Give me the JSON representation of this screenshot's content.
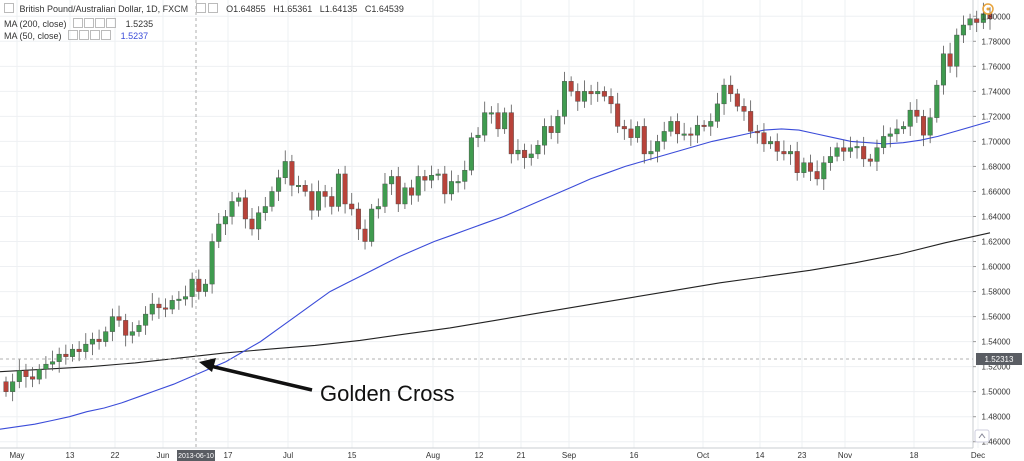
{
  "header": {
    "symbol": "British Pound/Australian Dollar, 1D, FXCM",
    "open_label": "O",
    "open": "1.64855",
    "high_label": "H",
    "high": "1.65361",
    "low_label": "L",
    "low": "1.64135",
    "close_label": "C",
    "close": "1.64539"
  },
  "indicators": [
    {
      "name": "MA (200, close)",
      "value": "1.5235",
      "color": "#222222"
    },
    {
      "name": "MA (50, close)",
      "value": "1.5237",
      "color": "#3b4cd9"
    }
  ],
  "price_tag": "1.52313",
  "crosshair_date": "2013-06-10",
  "annotation": "Golden Cross",
  "colors": {
    "up": "#3f9b4f",
    "down": "#b8433a",
    "ma50": "#3b4cd9",
    "ma200": "#222222",
    "grid": "#eef0f3",
    "axis_text": "#333333"
  },
  "chart_data": {
    "type": "candlestick",
    "x_ticks": [
      "May",
      "13",
      "22",
      "Jun",
      "2013-06-10",
      "17",
      "Jul",
      "15",
      "Aug",
      "12",
      "21",
      "Sep",
      "16",
      "Oct",
      "14",
      "23",
      "Nov",
      "18",
      "Dec"
    ],
    "y_ticks": [
      "1.46000",
      "1.48000",
      "1.50000",
      "1.52000",
      "1.54000",
      "1.56000",
      "1.58000",
      "1.60000",
      "1.62000",
      "1.64000",
      "1.66000",
      "1.68000",
      "1.70000",
      "1.72000",
      "1.74000",
      "1.76000",
      "1.78000",
      "1.80000"
    ],
    "ylim": [
      1.455,
      1.813
    ],
    "candles_close": [
      1.5,
      1.508,
      1.517,
      1.512,
      1.51,
      1.518,
      1.522,
      1.524,
      1.53,
      1.528,
      1.534,
      1.532,
      1.538,
      1.542,
      1.54,
      1.548,
      1.56,
      1.557,
      1.545,
      1.548,
      1.553,
      1.562,
      1.57,
      1.567,
      1.566,
      1.573,
      1.574,
      1.576,
      1.59,
      1.58,
      1.586,
      1.62,
      1.634,
      1.64,
      1.652,
      1.655,
      1.638,
      1.63,
      1.643,
      1.648,
      1.66,
      1.671,
      1.684,
      1.665,
      1.665,
      1.66,
      1.645,
      1.66,
      1.656,
      1.648,
      1.674,
      1.65,
      1.646,
      1.63,
      1.62,
      1.646,
      1.648,
      1.666,
      1.672,
      1.65,
      1.663,
      1.657,
      1.672,
      1.669,
      1.673,
      1.674,
      1.658,
      1.668,
      1.668,
      1.677,
      1.703,
      1.705,
      1.723,
      1.723,
      1.71,
      1.723,
      1.69,
      1.693,
      1.687,
      1.69,
      1.697,
      1.712,
      1.707,
      1.72,
      1.748,
      1.74,
      1.732,
      1.74,
      1.738,
      1.74,
      1.736,
      1.73,
      1.712,
      1.71,
      1.703,
      1.712,
      1.69,
      1.692,
      1.7,
      1.708,
      1.716,
      1.706,
      1.706,
      1.705,
      1.713,
      1.712,
      1.716,
      1.73,
      1.745,
      1.738,
      1.728,
      1.724,
      1.708,
      1.707,
      1.698,
      1.7,
      1.692,
      1.69,
      1.692,
      1.675,
      1.683,
      1.676,
      1.67,
      1.683,
      1.688,
      1.695,
      1.692,
      1.695,
      1.696,
      1.686,
      1.684,
      1.695,
      1.704,
      1.706,
      1.71,
      1.712,
      1.725,
      1.72,
      1.705,
      1.719,
      1.745,
      1.77,
      1.76,
      1.785,
      1.793,
      1.798,
      1.795,
      1.802,
      1.798
    ],
    "ma50": [
      1.47,
      1.472,
      1.474,
      1.477,
      1.48,
      1.484,
      1.487,
      1.491,
      1.496,
      1.501,
      1.506,
      1.512,
      1.518,
      1.524,
      1.532,
      1.54,
      1.55,
      1.56,
      1.57,
      1.58,
      1.587,
      1.594,
      1.601,
      1.608,
      1.614,
      1.62,
      1.625,
      1.63,
      1.635,
      1.64,
      1.646,
      1.652,
      1.658,
      1.664,
      1.67,
      1.675,
      1.68,
      1.684,
      1.688,
      1.692,
      1.696,
      1.7,
      1.703,
      1.706,
      1.709,
      1.71,
      1.709,
      1.706,
      1.703,
      1.7,
      1.699,
      1.698,
      1.699,
      1.701,
      1.704,
      1.708,
      1.712,
      1.716
    ],
    "ma200": [
      1.516,
      1.518,
      1.52,
      1.523,
      1.527,
      1.531,
      1.534,
      1.537,
      1.541,
      1.546,
      1.551,
      1.557,
      1.563,
      1.569,
      1.575,
      1.581,
      1.587,
      1.592,
      1.597,
      1.603,
      1.61,
      1.619,
      1.627
    ]
  }
}
